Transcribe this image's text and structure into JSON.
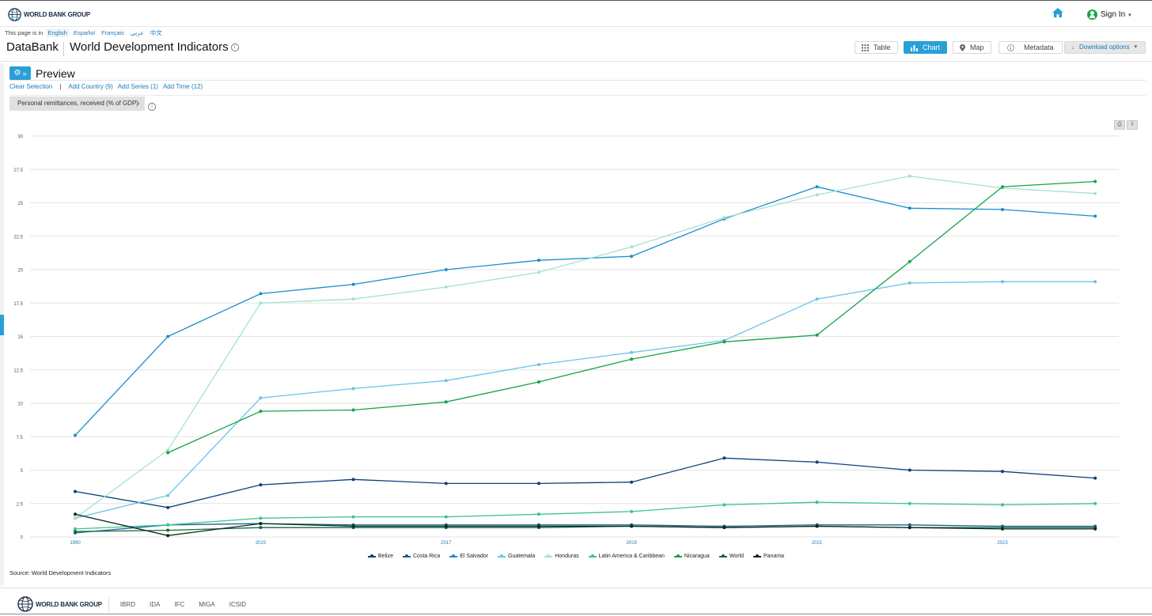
{
  "header": {
    "logo_text": "WORLD BANK GROUP",
    "sign_in_label": "Sign In"
  },
  "language_bar": {
    "prefix": "This page is in",
    "languages": [
      "English",
      "Español",
      "Français",
      "عربي",
      "中文"
    ],
    "active": "English"
  },
  "titlebar": {
    "brand": "DataBank",
    "title": "World Development Indicators",
    "view_buttons": [
      {
        "label": "Table",
        "icon": "grid-icon"
      },
      {
        "label": "Chart",
        "icon": "bar-chart-icon",
        "active": true
      },
      {
        "label": "Map",
        "icon": "map-pin-icon"
      },
      {
        "label": "Metadata",
        "icon": "info-icon"
      }
    ],
    "download_label": "Download options"
  },
  "preview": {
    "title": "Preview",
    "clear_selection": "Clear Selection",
    "add_country": "Add Country (9)",
    "add_series": "Add Series (1)",
    "add_time": "Add Time (12)",
    "series_selected": "Personal remittances, received (% of GDP)"
  },
  "chart_data": {
    "type": "line",
    "title": "",
    "xlabel": "",
    "ylabel": "",
    "x": [
      1990,
      2014,
      2015,
      2016,
      2017,
      2018,
      2019,
      2020,
      2021,
      2022,
      2023,
      2024
    ],
    "x_tick_labels": [
      "1990",
      "2015",
      "2017",
      "2019",
      "2021",
      "2023"
    ],
    "ylim": [
      0,
      30
    ],
    "y_ticks": [
      0,
      2.5,
      5,
      7.5,
      10,
      12.5,
      15,
      17.5,
      20,
      22.5,
      25,
      27.5,
      30
    ],
    "y_tick_labels": [
      "0",
      "2.5",
      "5",
      "7.5",
      "10",
      "12.5",
      "15",
      "17.5",
      "20",
      "22.5",
      "25",
      "27.5",
      "30"
    ],
    "grid": true,
    "legend_position": "bottom",
    "series": [
      {
        "name": "Belize",
        "color": "#0e3f7a",
        "values": [
          3.4,
          2.2,
          3.9,
          4.3,
          4.0,
          4.0,
          4.1,
          5.9,
          5.6,
          5.0,
          4.9,
          4.4
        ]
      },
      {
        "name": "Costa Rica",
        "color": "#1a5e99",
        "values": [
          0.3,
          0.9,
          1.0,
          0.9,
          0.9,
          0.9,
          0.9,
          0.8,
          0.9,
          0.9,
          0.8,
          0.8
        ]
      },
      {
        "name": "El Salvador",
        "color": "#1b8ec9",
        "values": [
          7.6,
          15.0,
          18.2,
          18.9,
          20.0,
          20.7,
          21.0,
          23.8,
          26.2,
          24.6,
          24.5,
          24.0
        ]
      },
      {
        "name": "Guatemala",
        "color": "#6bc3e9",
        "values": [
          1.4,
          3.1,
          10.4,
          11.1,
          11.7,
          12.9,
          13.8,
          14.7,
          17.8,
          19.0,
          19.1,
          19.1
        ]
      },
      {
        "name": "Honduras",
        "color": "#a5e2cf",
        "values": [
          1.4,
          6.5,
          17.5,
          17.8,
          18.7,
          19.8,
          21.7,
          23.9,
          25.6,
          27.0,
          26.1,
          25.7
        ]
      },
      {
        "name": "Latin America & Caribbean",
        "color": "#3cc48e",
        "values": [
          0.6,
          0.9,
          1.4,
          1.5,
          1.5,
          1.7,
          1.9,
          2.4,
          2.6,
          2.5,
          2.4,
          2.5
        ]
      },
      {
        "name": "Nicaragua",
        "color": "#12a44a",
        "values": [
          null,
          6.3,
          9.4,
          9.5,
          10.1,
          11.6,
          13.3,
          14.6,
          15.1,
          20.6,
          26.2,
          26.6
        ]
      },
      {
        "name": "World",
        "color": "#136b34",
        "values": [
          0.4,
          0.5,
          0.7,
          0.7,
          0.7,
          0.7,
          0.8,
          0.7,
          0.8,
          0.7,
          0.7,
          0.7
        ]
      },
      {
        "name": "Panama",
        "color": "#0b2a1a",
        "values": [
          1.7,
          0.1,
          1.0,
          0.8,
          0.8,
          0.8,
          0.8,
          0.7,
          0.8,
          0.7,
          0.6,
          0.6
        ]
      }
    ]
  },
  "source": "Source: World Development Indicators",
  "footer": {
    "logo_text": "WORLD BANK GROUP",
    "links": [
      "IBRD",
      "IDA",
      "IFC",
      "MIGA",
      "ICSID"
    ]
  }
}
